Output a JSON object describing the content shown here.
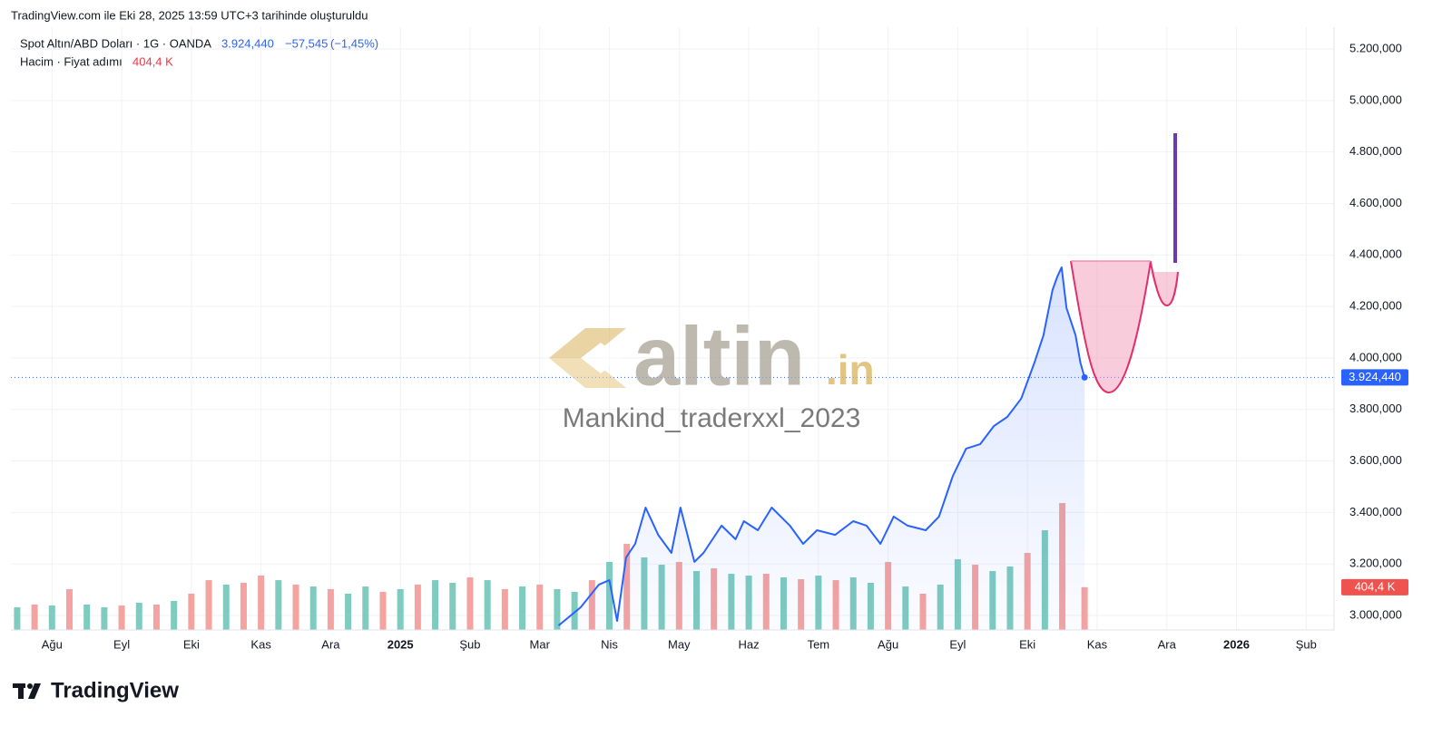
{
  "chart_data": {
    "type": "line",
    "header": "TradingView.com ile Eki 28, 2025 13:59 UTC+3 tarihinde oluşturuldu",
    "symbol": "Spot Altın/ABD Doları · 1G · OANDA",
    "last_price": {
      "value": 3924.44,
      "label": "3.924,440"
    },
    "change": {
      "value": -57.545,
      "label": "−57,545"
    },
    "change_pct": {
      "value": -1.45,
      "label": "(−1,45%)"
    },
    "volume_title": "Hacim · Fiyat adımı",
    "last_volume": {
      "value": 404400,
      "label": "404,4 K"
    },
    "watermark": "altin",
    "watermark_suffix": ".in",
    "watermark_author": "Mankind_traderxxl_2023",
    "brand": "TradingView",
    "xlim": [
      -0.59,
      18.4
    ],
    "xticks": [
      {
        "value": 0,
        "label": "Ağu"
      },
      {
        "value": 1,
        "label": "Eyl"
      },
      {
        "value": 2,
        "label": "Eki"
      },
      {
        "value": 3,
        "label": "Kas"
      },
      {
        "value": 4,
        "label": "Ara"
      },
      {
        "value": 5,
        "label": "2025"
      },
      {
        "value": 6,
        "label": "Şub"
      },
      {
        "value": 7,
        "label": "Mar"
      },
      {
        "value": 8,
        "label": "Nis"
      },
      {
        "value": 9,
        "label": "May"
      },
      {
        "value": 10,
        "label": "Haz"
      },
      {
        "value": 11,
        "label": "Tem"
      },
      {
        "value": 12,
        "label": "Ağu"
      },
      {
        "value": 13,
        "label": "Eyl"
      },
      {
        "value": 14,
        "label": "Eki"
      },
      {
        "value": 15,
        "label": "Kas"
      },
      {
        "value": 16,
        "label": "Ara"
      },
      {
        "value": 17,
        "label": "2026"
      },
      {
        "value": 18,
        "label": "Şub"
      }
    ],
    "ylim": [
      2943.7,
      5284.5
    ],
    "yticks": [
      {
        "value": 3000,
        "label": "3.000,000"
      },
      {
        "value": 3200,
        "label": "3.200,000"
      },
      {
        "value": 3400,
        "label": "3.400,000"
      },
      {
        "value": 3600,
        "label": "3.600,000"
      },
      {
        "value": 3800,
        "label": "3.800,000"
      },
      {
        "value": 4000,
        "label": "4.000,000"
      },
      {
        "value": 4200,
        "label": "4.200,000"
      },
      {
        "value": 4400,
        "label": "4.400,000"
      },
      {
        "value": 4600,
        "label": "4.600,000"
      },
      {
        "value": 4800,
        "label": "4.800,000"
      },
      {
        "value": 5000,
        "label": "5.000,000"
      },
      {
        "value": 5200,
        "label": "5.200,000"
      }
    ],
    "grid": true,
    "series": [
      {
        "name": "Spot Altın/ABD Doları",
        "color": "#2962ff",
        "x": [
          7.27,
          7.59,
          7.85,
          8.0,
          8.11,
          8.24,
          8.37,
          8.52,
          8.7,
          8.89,
          9.02,
          9.22,
          9.35,
          9.61,
          9.81,
          9.93,
          10.13,
          10.33,
          10.59,
          10.78,
          10.98,
          11.24,
          11.5,
          11.69,
          11.89,
          12.08,
          12.28,
          12.54,
          12.73,
          12.93,
          13.12,
          13.32,
          13.52,
          13.71,
          13.91,
          14.1,
          14.23,
          14.36,
          14.43,
          14.49,
          14.56,
          14.69,
          14.76,
          14.82
        ],
        "values": [
          2961,
          3032,
          3120,
          3137,
          2979,
          3225,
          3278,
          3419,
          3313,
          3243,
          3419,
          3208,
          3243,
          3349,
          3296,
          3366,
          3331,
          3419,
          3349,
          3278,
          3331,
          3313,
          3366,
          3349,
          3278,
          3384,
          3349,
          3331,
          3384,
          3542,
          3648,
          3665,
          3736,
          3771,
          3842,
          3982,
          4088,
          4264,
          4317,
          4352,
          4194,
          4088,
          3982,
          3924.44
        ]
      }
    ],
    "volume": {
      "ylim": [
        0,
        5700000
      ],
      "x": [
        -0.5,
        -0.25,
        0,
        0.25,
        0.5,
        0.75,
        1,
        1.25,
        1.5,
        1.75,
        2,
        2.25,
        2.5,
        2.75,
        3,
        3.25,
        3.5,
        3.75,
        4,
        4.25,
        4.5,
        4.75,
        5,
        5.25,
        5.5,
        5.75,
        6,
        6.25,
        6.5,
        6.75,
        7,
        7.25,
        7.5,
        7.75,
        8,
        8.25,
        8.5,
        8.75,
        9,
        9.25,
        9.5,
        9.75,
        10,
        10.25,
        10.5,
        10.75,
        11,
        11.25,
        11.5,
        11.75,
        12,
        12.25,
        12.5,
        12.75,
        13,
        13.25,
        13.5,
        13.75,
        14,
        14.25,
        14.5,
        14.82
      ],
      "values": [
        214000,
        240000,
        231000,
        386000,
        240000,
        214000,
        231000,
        257000,
        240000,
        274000,
        343000,
        471000,
        429000,
        446000,
        514000,
        471000,
        429000,
        411000,
        386000,
        343000,
        411000,
        360000,
        386000,
        429000,
        471000,
        446000,
        497000,
        471000,
        386000,
        411000,
        429000,
        386000,
        360000,
        471000,
        643000,
        814000,
        686000,
        617000,
        643000,
        557000,
        583000,
        531000,
        514000,
        531000,
        497000,
        480000,
        514000,
        471000,
        497000,
        446000,
        643000,
        411000,
        343000,
        429000,
        669000,
        617000,
        557000,
        600000,
        729000,
        943000,
        1200000,
        404400
      ],
      "colors": [
        "#7fcbbf",
        "#f5a3a0",
        "#7fcbbf",
        "#f5a3a0",
        "#7fcbbf",
        "#7fcbbf",
        "#f5a3a0",
        "#7fcbbf",
        "#f5a3a0",
        "#7fcbbf",
        "#f5a3a0",
        "#f5a3a0",
        "#7fcbbf",
        "#f5a3a0",
        "#f5a3a0",
        "#7fcbbf",
        "#f5a3a0",
        "#7fcbbf",
        "#f5a3a0",
        "#7fcbbf",
        "#7fcbbf",
        "#f5a3a0",
        "#7fcbbf",
        "#f5a3a0",
        "#7fcbbf",
        "#7fcbbf",
        "#f5a3a0",
        "#7fcbbf",
        "#f5a3a0",
        "#7fcbbf",
        "#f5a3a0",
        "#7fcbbf",
        "#7fcbbf",
        "#f5a3a0",
        "#7fcbbf",
        "#f5a3a0",
        "#7fcbbf",
        "#7fcbbf",
        "#f5a3a0",
        "#7fcbbf",
        "#f5a3a0",
        "#7fcbbf",
        "#7fcbbf",
        "#f5a3a0",
        "#7fcbbf",
        "#f5a3a0",
        "#7fcbbf",
        "#f5a3a0",
        "#7fcbbf",
        "#7fcbbf",
        "#f5a3a0",
        "#7fcbbf",
        "#f5a3a0",
        "#7fcbbf",
        "#7fcbbf",
        "#f5a3a0",
        "#7fcbbf",
        "#7fcbbf",
        "#f5a3a0",
        "#7fcbbf",
        "#f5a3a0",
        "#f5a3a0"
      ]
    }
  }
}
